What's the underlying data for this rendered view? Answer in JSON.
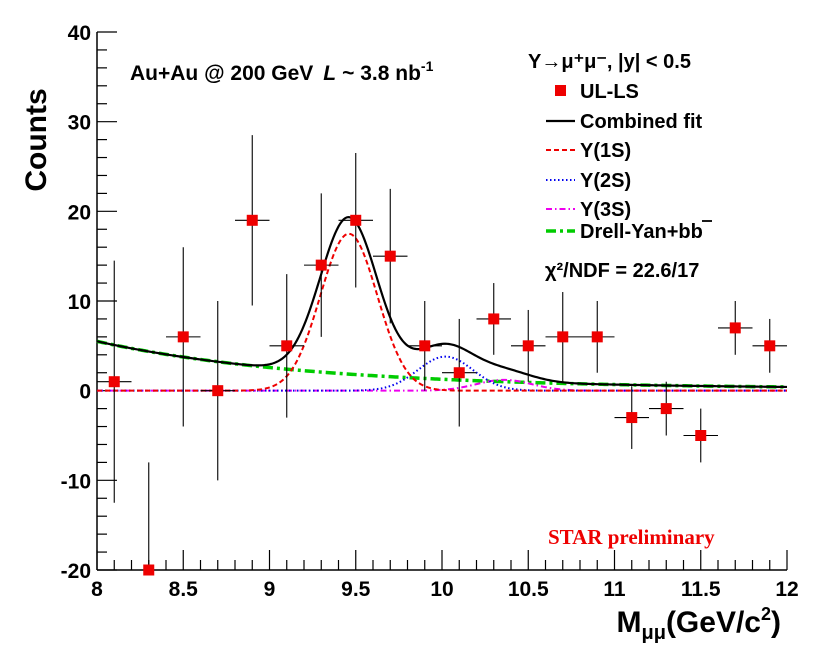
{
  "chart_data": {
    "type": "scatter",
    "title": "",
    "xlabel": "M_μμ(GeV/c²)",
    "xlabel_main": "M",
    "xlabel_sub": "μμ",
    "xlabel_unit": "(GeV/c",
    "xlabel_sup": "2",
    "xlabel_close": ")",
    "ylabel": "Counts",
    "xlim": [
      8,
      12
    ],
    "ylim": [
      -20,
      40
    ],
    "x_ticks": [
      "8",
      "8.5",
      "9",
      "9.5",
      "10",
      "10.5",
      "11",
      "11.5",
      "12"
    ],
    "y_ticks": [
      "-20",
      "-10",
      "0",
      "10",
      "20",
      "30",
      "40"
    ],
    "bin_halfwidth": 0.1,
    "series": [
      {
        "name": "UL-LS",
        "color": "#ee0000",
        "x": [
          8.1,
          8.3,
          8.5,
          8.7,
          8.9,
          9.1,
          9.3,
          9.5,
          9.7,
          9.9,
          10.1,
          10.3,
          10.5,
          10.7,
          10.9,
          11.1,
          11.3,
          11.5,
          11.7,
          11.9
        ],
        "y": [
          1,
          -20,
          6,
          0,
          19,
          5,
          14,
          19,
          15,
          5,
          2,
          8,
          5,
          6,
          6,
          -3,
          -2,
          -5,
          7,
          5
        ],
        "yerr": [
          13.5,
          12,
          10,
          10,
          9.5,
          8,
          8,
          7.5,
          7.5,
          5,
          6,
          4,
          4,
          5,
          4,
          3.5,
          3,
          3,
          3,
          3
        ]
      }
    ],
    "fits": [
      {
        "name": "Combined fit",
        "color": "#000000",
        "style": "solid"
      },
      {
        "name": "Υ(1S)",
        "color": "#ee0000",
        "style": "dashed"
      },
      {
        "name": "Υ(2S)",
        "color": "#0000ee",
        "style": "dotted"
      },
      {
        "name": "Υ(3S)",
        "color": "#ee00ee",
        "style": "dashdot"
      },
      {
        "name": "Drell-Yan+bb",
        "color": "#00cc00",
        "style": "dashdot"
      }
    ],
    "legend": {
      "header": "Υ→μ⁺μ⁻, |y| < 0.5",
      "entries": [
        "UL-LS",
        "Combined fit",
        "Υ(1S)",
        "Υ(2S)",
        "Υ(3S)",
        "Drell-Yan+bb"
      ],
      "position": "top-right"
    },
    "annotations": {
      "system": "Au+Au @ 200 GeV",
      "lumi_symbol": "L",
      "lumi_value": "~ 3.8 nb",
      "lumi_sup": "-1",
      "chi2": "χ²/NDF = 22.6/17",
      "preliminary": "STAR preliminary"
    }
  }
}
